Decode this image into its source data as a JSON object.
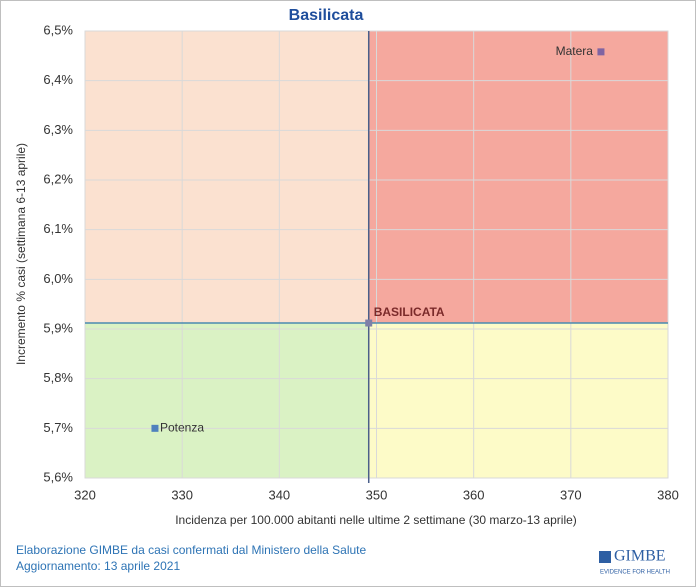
{
  "chart_data": {
    "type": "scatter",
    "title": "Basilicata",
    "x_label": "Incidenza per 100.000 abitanti nelle ultime 2 settimane (30 marzo-13 aprile)",
    "y_label": "Incremento % casi (settimana 6-13 aprile)",
    "points": [
      {
        "name": "Matera",
        "x": 373.1,
        "y": 6.458,
        "color": "#8064a2"
      },
      {
        "name": "Potenza",
        "x": 327.2,
        "y": 5.7,
        "color": "#4f81bd"
      },
      {
        "name": "BASILICATA",
        "x": 349.2,
        "y": 5.912,
        "color": "#7f7fa8"
      }
    ],
    "xlim": [
      320,
      380
    ],
    "xticks": [
      320,
      330,
      340,
      350,
      360,
      370,
      380
    ],
    "ylim": [
      5.6,
      6.5
    ],
    "yticks": [
      {
        "value": 5.6,
        "label": "5,6%"
      },
      {
        "value": 5.7,
        "label": "5,7%"
      },
      {
        "value": 5.8,
        "label": "5,8%"
      },
      {
        "value": 5.9,
        "label": "5,9%"
      },
      {
        "value": 6.0,
        "label": "6,0%"
      },
      {
        "value": 6.1,
        "label": "6,1%"
      },
      {
        "value": 6.2,
        "label": "6,2%"
      },
      {
        "value": 6.3,
        "label": "6,3%"
      },
      {
        "value": 6.4,
        "label": "6,4%"
      },
      {
        "value": 6.5,
        "label": "6,5%"
      }
    ],
    "grid": true
  },
  "footer": {
    "source": "Elaborazione GIMBE da casi confermati dal Ministero della Salute",
    "updated": "Aggiornamento: 13 aprile 2021",
    "logo": "GIMBE",
    "logo_tagline": "EVIDENCE FOR HEALTH"
  }
}
